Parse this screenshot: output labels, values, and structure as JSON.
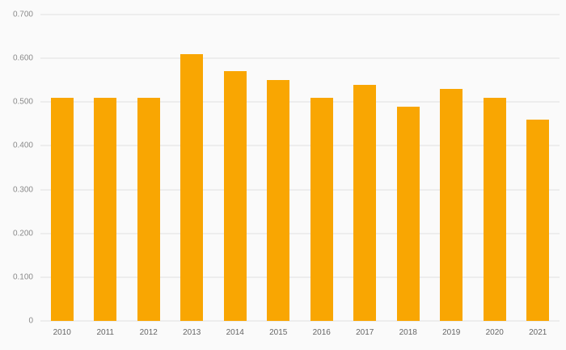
{
  "chart_data": {
    "type": "bar",
    "title": "",
    "xlabel": "",
    "ylabel": "",
    "categories": [
      "2010",
      "2011",
      "2012",
      "2013",
      "2014",
      "2015",
      "2016",
      "2017",
      "2018",
      "2019",
      "2020",
      "2021"
    ],
    "values": [
      0.51,
      0.51,
      0.51,
      0.61,
      0.57,
      0.55,
      0.51,
      0.54,
      0.49,
      0.53,
      0.51,
      0.46
    ],
    "ylim": [
      0,
      0.7
    ],
    "yticks": [
      0,
      0.1,
      0.2,
      0.3,
      0.4,
      0.5,
      0.6,
      0.7
    ],
    "ytick_labels": [
      "0",
      "0.100",
      "0.200",
      "0.300",
      "0.400",
      "0.500",
      "0.600",
      "0.700"
    ],
    "grid": true,
    "legend": "none",
    "colors": {
      "bar": "#F9A602",
      "background": "#FAFAFA",
      "gridline": "#E0E0E0",
      "y_tick_text": "#8A8A8A",
      "x_tick_text": "#666666"
    }
  }
}
